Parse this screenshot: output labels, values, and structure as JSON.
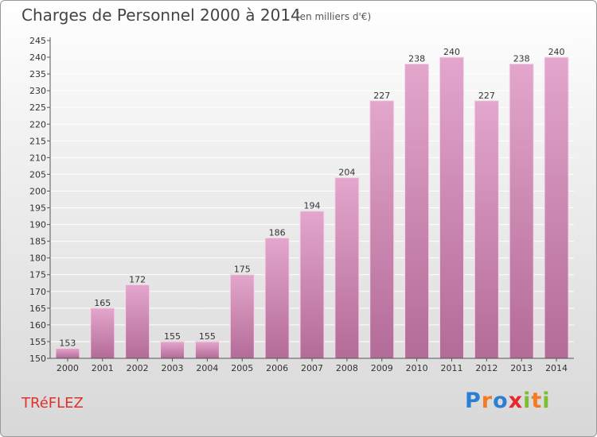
{
  "title": "Charges de Personnel 2000 à 2014",
  "subtitle": "(en milliers d'€)",
  "footer": {
    "town": "TRéFLEZ",
    "brand": [
      "P",
      "r",
      "o",
      "x",
      "i",
      "t",
      "i"
    ],
    "brand_colors": [
      "#2a7fd4",
      "#f47b20",
      "#2a7fd4",
      "#e8262b",
      "#7bbf2e",
      "#f47b20",
      "#7bbf2e"
    ]
  },
  "colors": {
    "bar_top": "#e3a6cc",
    "bar_bottom": "#b36b97",
    "bar_edge": "#f4d7e8",
    "grid": "#ffffff",
    "axis": "#555555"
  },
  "chart_data": {
    "type": "bar",
    "categories": [
      "2000",
      "2001",
      "2002",
      "2003",
      "2004",
      "2005",
      "2006",
      "2007",
      "2008",
      "2009",
      "2010",
      "2011",
      "2012",
      "2013",
      "2014"
    ],
    "values": [
      153,
      165,
      172,
      155,
      155,
      175,
      186,
      194,
      204,
      227,
      238,
      240,
      227,
      238,
      240
    ],
    "ylim": [
      150,
      245
    ],
    "yticks": [
      150,
      155,
      160,
      165,
      170,
      175,
      180,
      185,
      190,
      195,
      200,
      205,
      210,
      215,
      220,
      225,
      230,
      235,
      240,
      245
    ],
    "grid": true,
    "xlabel": "",
    "ylabel": ""
  }
}
